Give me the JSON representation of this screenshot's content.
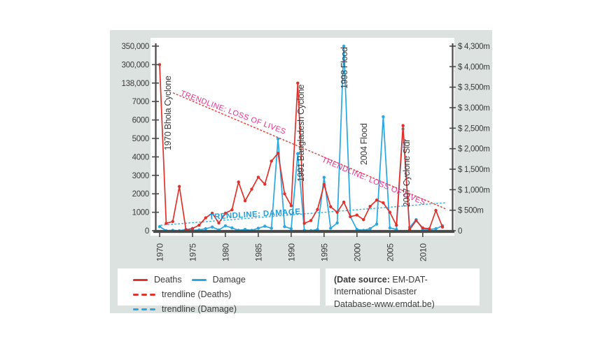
{
  "colors": {
    "deaths_red": "#e0312b",
    "damage_blue": "#29a8e0",
    "trend_pink_label": "#e9318c",
    "trend_damage_label": "#1f9ed9",
    "ink": "#3b3b3c",
    "axis_dark": "#4a4a48",
    "panel_bg": "#dce2e0"
  },
  "chart_data": {
    "type": "line",
    "title": "",
    "x_label": "",
    "years": [
      1970,
      1971,
      1972,
      1973,
      1974,
      1975,
      1976,
      1977,
      1978,
      1979,
      1980,
      1981,
      1982,
      1983,
      1984,
      1985,
      1986,
      1987,
      1988,
      1989,
      1990,
      1991,
      1992,
      1993,
      1994,
      1995,
      1996,
      1997,
      1998,
      1999,
      2000,
      2001,
      2002,
      2003,
      2004,
      2005,
      2006,
      2007,
      2008,
      2009,
      2010,
      2011,
      2012,
      2013
    ],
    "series": [
      {
        "name": "Deaths",
        "axis": "left",
        "color_key": "deaths_red",
        "values": [
          300000,
          400,
          500,
          2400,
          50,
          120,
          300,
          700,
          950,
          420,
          950,
          1130,
          2640,
          1620,
          2250,
          2900,
          2520,
          3770,
          4200,
          2000,
          1350,
          138000,
          400,
          550,
          1150,
          2500,
          1300,
          1000,
          1550,
          760,
          850,
          600,
          1320,
          1660,
          1510,
          1000,
          300,
          5700,
          50,
          550,
          150,
          100,
          1100,
          200
        ]
      },
      {
        "name": "Damage",
        "axis": "right",
        "color_key": "damage_blue",
        "values": [
          100,
          0,
          10,
          0,
          30,
          10,
          20,
          50,
          90,
          20,
          120,
          70,
          10,
          30,
          10,
          60,
          110,
          60,
          2240,
          100,
          50,
          1880,
          10,
          0,
          30,
          1300,
          60,
          190,
          4300,
          340,
          30,
          10,
          50,
          160,
          2780,
          70,
          30,
          2480,
          80,
          270,
          40,
          30,
          50,
          120
        ]
      }
    ],
    "left_axis": {
      "values": [
        0,
        1000,
        2000,
        3000,
        4000,
        5000,
        6000,
        7000,
        138000,
        300000,
        350000
      ],
      "labels": [
        "0",
        "1000",
        "2000",
        "3000",
        "4000",
        "5000",
        "6000",
        "7000",
        "138,000",
        "300,000",
        "350,000"
      ]
    },
    "right_axis": {
      "values": [
        0,
        500,
        1000,
        1500,
        2000,
        2500,
        3000,
        3500,
        4000,
        4300
      ],
      "labels": [
        "0",
        "$ 500m",
        "$ 1,000m",
        "$ 1,500m",
        "$ 2,000m",
        "$ 2,500m",
        "$ 3,000m",
        "$ 3,500m",
        "$ 4,000m",
        "$ 4,300m"
      ]
    },
    "x_ticks": [
      1970,
      1975,
      1980,
      1985,
      1990,
      1995,
      2000,
      2005,
      2010
    ],
    "trendlines": [
      {
        "name": "trendline (Deaths)",
        "color_key": "deaths_red",
        "year_start": 1972.1,
        "frac_start": 0.746,
        "year_end": 2013.6,
        "frac_end": 0.117
      },
      {
        "name": "trendline (Damage)",
        "color_key": "damage_blue",
        "year_start": 1970.2,
        "frac_start": 0.03,
        "year_end": 2013.6,
        "frac_end": 0.152
      }
    ],
    "trend_labels": [
      {
        "text": "TRENDLINE: LOSS OF LIVES",
        "color_key": "trend_pink_label"
      },
      {
        "text": "TRENDLINE: LOSS OF LIVES",
        "color_key": "trend_pink_label"
      },
      {
        "text": "TRENDLINE: DAMAGE",
        "color_key": "trend_damage_label"
      }
    ],
    "annotations": [
      {
        "label": "1970 Bhola Cyclone"
      },
      {
        "label": "1991 Bangladesh Cyclone"
      },
      {
        "label": "1998 Flood"
      },
      {
        "label": "2004 Flood"
      },
      {
        "label": "2007 Cyclone Sidr"
      }
    ]
  },
  "legend": {
    "items": [
      {
        "label": "Deaths",
        "swatch": "solid",
        "color_key": "deaths_red"
      },
      {
        "label": "Damage",
        "swatch": "solid",
        "color_key": "damage_blue"
      },
      {
        "label": "trendline (Deaths)",
        "swatch": "dashed",
        "color_key": "deaths_red"
      },
      {
        "label": "trendline (Damage)",
        "swatch": "dashed",
        "color_key": "damage_blue"
      }
    ]
  },
  "source": {
    "bold": "(Date source:",
    "line1": " EM-DAT-International Disaster",
    "line2": "Database-www.emdat.be)"
  }
}
